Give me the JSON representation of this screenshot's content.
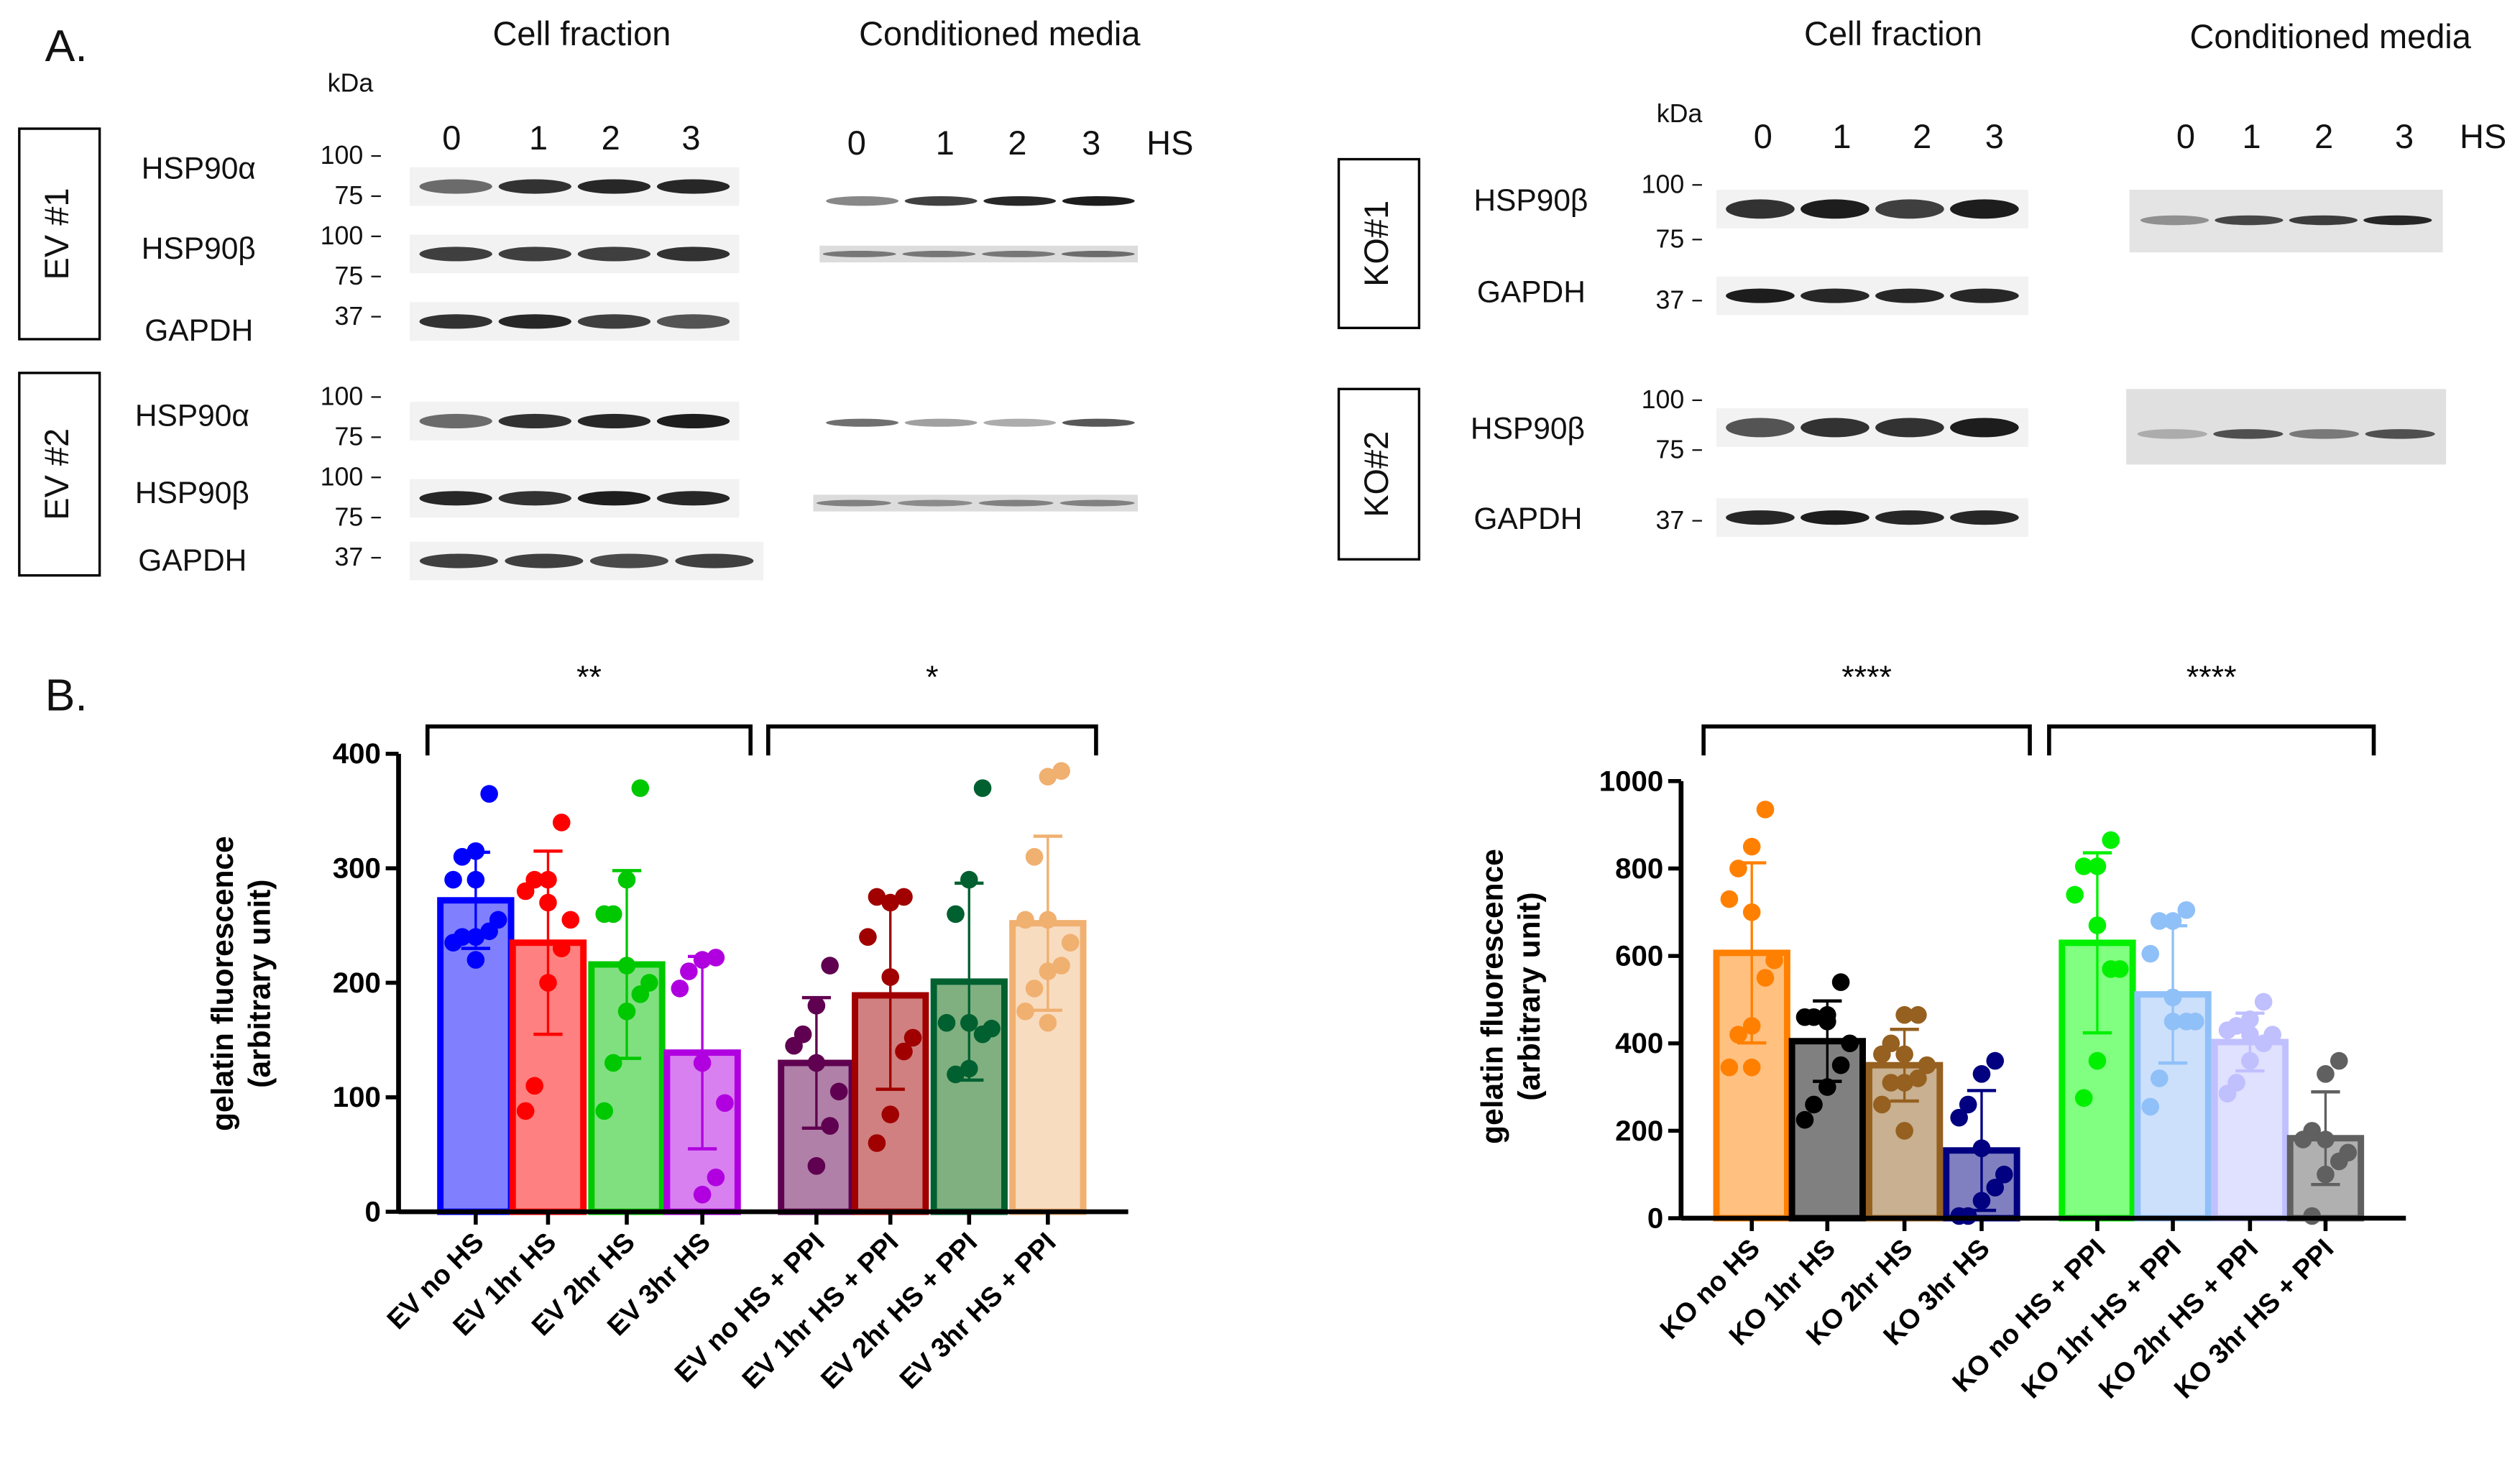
{
  "panelA": {
    "label": "A.",
    "kda": "kDa",
    "hs": "HS",
    "lanes": [
      "0",
      "1",
      "2",
      "3"
    ],
    "left": {
      "cell_fraction": "Cell fraction",
      "conditioned_media": "Conditioned media",
      "groups": [
        {
          "name": "EV #1",
          "rows": [
            {
              "protein": "HSP90α",
              "markers": [
                "100",
                "75"
              ]
            },
            {
              "protein": "HSP90β",
              "markers": [
                "100",
                "75"
              ]
            },
            {
              "protein": "GAPDH",
              "markers": [
                "37"
              ]
            }
          ]
        },
        {
          "name": "EV #2",
          "rows": [
            {
              "protein": "HSP90α",
              "markers": [
                "100",
                "75"
              ]
            },
            {
              "protein": "HSP90β",
              "markers": [
                "100",
                "75"
              ]
            },
            {
              "protein": "GAPDH",
              "markers": [
                "37"
              ]
            }
          ]
        }
      ]
    },
    "right": {
      "cell_fraction": "Cell fraction",
      "conditioned_media": "Conditioned media",
      "groups": [
        {
          "name": "KO#1",
          "rows": [
            {
              "protein": "HSP90β",
              "markers": [
                "100",
                "75"
              ]
            },
            {
              "protein": "GAPDH",
              "markers": [
                "37"
              ]
            }
          ]
        },
        {
          "name": "KO#2",
          "rows": [
            {
              "protein": "HSP90β",
              "markers": [
                "100",
                "75"
              ]
            },
            {
              "protein": "GAPDH",
              "markers": [
                "37"
              ]
            }
          ]
        }
      ]
    }
  },
  "panelB": {
    "label": "B."
  },
  "chart_data": [
    {
      "type": "bar",
      "title": "",
      "ylabel": "gelatin fluorescence (arbitrary unit)",
      "ylabel_lines": [
        "gelatin fluorescence",
        "(arbitrary unit)"
      ],
      "ylim": [
        0,
        400
      ],
      "yticks": [
        "0",
        "100",
        "200",
        "300",
        "400"
      ],
      "grid": false,
      "categories": [
        "EV no HS",
        "EV 1hr HS",
        "EV 2hr HS",
        "EV 3hr HS",
        "EV no HS + PPI",
        "EV 1hr HS + PPI",
        "EV 2hr HS + PPI",
        "EV 3hr HS + PPI"
      ],
      "values": [
        272,
        235,
        216,
        139,
        130,
        189,
        201,
        252
      ],
      "sd": [
        42,
        80,
        82,
        84,
        57,
        82,
        86,
        76
      ],
      "points": [
        [
          365,
          315,
          310,
          290,
          290,
          255,
          245,
          240,
          240,
          235,
          220
        ],
        [
          340,
          290,
          290,
          280,
          270,
          255,
          230,
          200,
          110,
          88
        ],
        [
          370,
          290,
          260,
          260,
          215,
          200,
          190,
          175,
          130,
          88
        ],
        [
          222,
          220,
          210,
          195,
          130,
          95,
          30,
          15
        ],
        [
          215,
          180,
          155,
          145,
          130,
          105,
          75,
          40
        ],
        [
          275,
          270,
          275,
          240,
          205,
          152,
          140,
          85,
          60
        ],
        [
          370,
          290,
          260,
          165,
          165,
          160,
          155,
          125,
          120
        ],
        [
          385,
          380,
          310,
          255,
          255,
          235,
          215,
          210,
          195,
          175,
          165
        ]
      ],
      "stroke_colors": [
        "#0000ff",
        "#ff0000",
        "#00c800",
        "#b000e0",
        "#600050",
        "#a00000",
        "#006030",
        "#f0b070"
      ],
      "fill_colors": [
        "#8080ff",
        "#ff8080",
        "#80e080",
        "#d880f0",
        "#b080a8",
        "#d08080",
        "#80b080",
        "#f8dcc0"
      ],
      "comparisons": [
        {
          "from": 0,
          "to": 3,
          "label": "**"
        },
        {
          "from": 4,
          "to": 7,
          "label": "*"
        }
      ]
    },
    {
      "type": "bar",
      "title": "",
      "ylabel": "gelatin fluorescence (arbitrary unit)",
      "ylabel_lines": [
        "gelatin fluorescence",
        "(arbitrary unit)"
      ],
      "ylim": [
        0,
        1000
      ],
      "yticks": [
        "0",
        "200",
        "400",
        "600",
        "800",
        "1000"
      ],
      "grid": false,
      "categories": [
        "KO no HS",
        "KO 1hr HS",
        "KO 2hr HS",
        "KO 3hr HS",
        "KO no HS + PPI",
        "KO 1hr HS + PPI",
        "KO 2hr HS + PPI",
        "KO 3hr HS + PPI"
      ],
      "values": [
        607,
        405,
        350,
        155,
        630,
        512,
        403,
        183
      ],
      "sd": [
        206,
        92,
        82,
        137,
        206,
        157,
        66,
        106
      ],
      "points": [
        [
          935,
          850,
          800,
          730,
          700,
          590,
          550,
          440,
          420,
          345,
          345
        ],
        [
          540,
          465,
          460,
          460,
          450,
          400,
          350,
          300,
          260,
          225
        ],
        [
          465,
          465,
          400,
          375,
          375,
          350,
          320,
          310,
          310,
          260,
          200
        ],
        [
          360,
          330,
          260,
          230,
          160,
          100,
          70,
          40,
          5,
          5
        ],
        [
          865,
          805,
          805,
          740,
          670,
          570,
          570,
          360,
          275
        ],
        [
          705,
          680,
          680,
          605,
          505,
          450,
          450,
          450,
          320,
          255
        ],
        [
          495,
          455,
          440,
          430,
          420,
          420,
          400,
          360,
          310,
          285
        ],
        [
          360,
          330,
          200,
          180,
          180,
          150,
          130,
          100,
          5
        ]
      ],
      "stroke_colors": [
        "#ff8000",
        "#000000",
        "#956020",
        "#000080",
        "#00f000",
        "#90c0f8",
        "#c0c0ff",
        "#606060"
      ],
      "fill_colors": [
        "#ffc080",
        "#808080",
        "#c8b090",
        "#8080c0",
        "#80ff80",
        "#cce0fc",
        "#e0e0ff",
        "#b0b0b0"
      ],
      "comparisons": [
        {
          "from": 0,
          "to": 3,
          "label": "****"
        },
        {
          "from": 4,
          "to": 7,
          "label": "****"
        }
      ]
    }
  ]
}
